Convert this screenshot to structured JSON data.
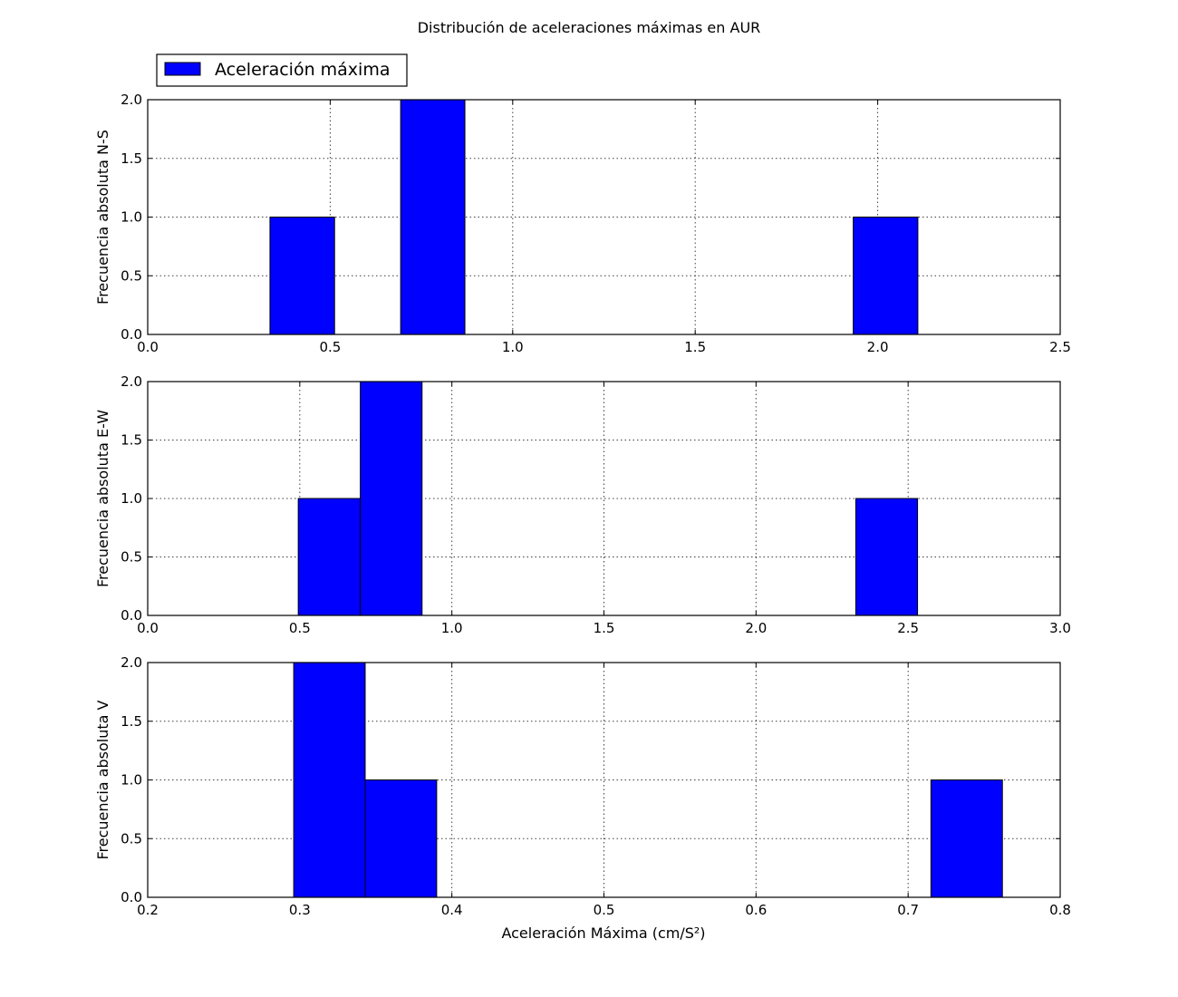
{
  "figure": {
    "title": "Distribución de aceleraciones máximas en AUR",
    "xlabel": "Aceleración Máxima (cm/S²)",
    "legend": {
      "label": "Aceleración máxima",
      "placement": "top-left, above first subplot"
    },
    "colors": {
      "bar_fill": "#0000ff",
      "bar_edge": "#000000"
    }
  },
  "chart_data": [
    {
      "type": "bar",
      "title": "",
      "xlabel": "",
      "ylabel": "Frecuencia absoluta N-S",
      "xlim": [
        0.0,
        2.5
      ],
      "ylim": [
        0.0,
        2.0
      ],
      "xticks": [
        "0.0",
        "0.5",
        "1.0",
        "1.5",
        "2.0",
        "2.5"
      ],
      "yticks": [
        "0.0",
        "0.5",
        "1.0",
        "1.5",
        "2.0"
      ],
      "grid": true,
      "bars": [
        {
          "x0": 0.335,
          "x1": 0.512,
          "value": 1
        },
        {
          "x0": 0.693,
          "x1": 0.869,
          "value": 2
        },
        {
          "x0": 1.933,
          "x1": 2.11,
          "value": 1
        }
      ]
    },
    {
      "type": "bar",
      "title": "",
      "xlabel": "",
      "ylabel": "Frecuencia absoluta E-W",
      "xlim": [
        0.0,
        3.0
      ],
      "ylim": [
        0.0,
        2.0
      ],
      "xticks": [
        "0.0",
        "0.5",
        "1.0",
        "1.5",
        "2.0",
        "2.5",
        "3.0"
      ],
      "yticks": [
        "0.0",
        "0.5",
        "1.0",
        "1.5",
        "2.0"
      ],
      "grid": true,
      "bars": [
        {
          "x0": 0.495,
          "x1": 0.699,
          "value": 1
        },
        {
          "x0": 0.699,
          "x1": 0.902,
          "value": 2
        },
        {
          "x0": 2.328,
          "x1": 2.531,
          "value": 1
        }
      ]
    },
    {
      "type": "bar",
      "title": "",
      "xlabel": "Aceleración Máxima (cm/S²)",
      "ylabel": "Frecuencia absoluta V",
      "xlim": [
        0.2,
        0.8
      ],
      "ylim": [
        0.0,
        2.0
      ],
      "xticks": [
        "0.2",
        "0.3",
        "0.4",
        "0.5",
        "0.6",
        "0.7",
        "0.8"
      ],
      "yticks": [
        "0.0",
        "0.5",
        "1.0",
        "1.5",
        "2.0"
      ],
      "grid": true,
      "bars": [
        {
          "x0": 0.296,
          "x1": 0.343,
          "value": 2
        },
        {
          "x0": 0.343,
          "x1": 0.39,
          "value": 1
        },
        {
          "x0": 0.715,
          "x1": 0.762,
          "value": 1
        }
      ]
    }
  ]
}
